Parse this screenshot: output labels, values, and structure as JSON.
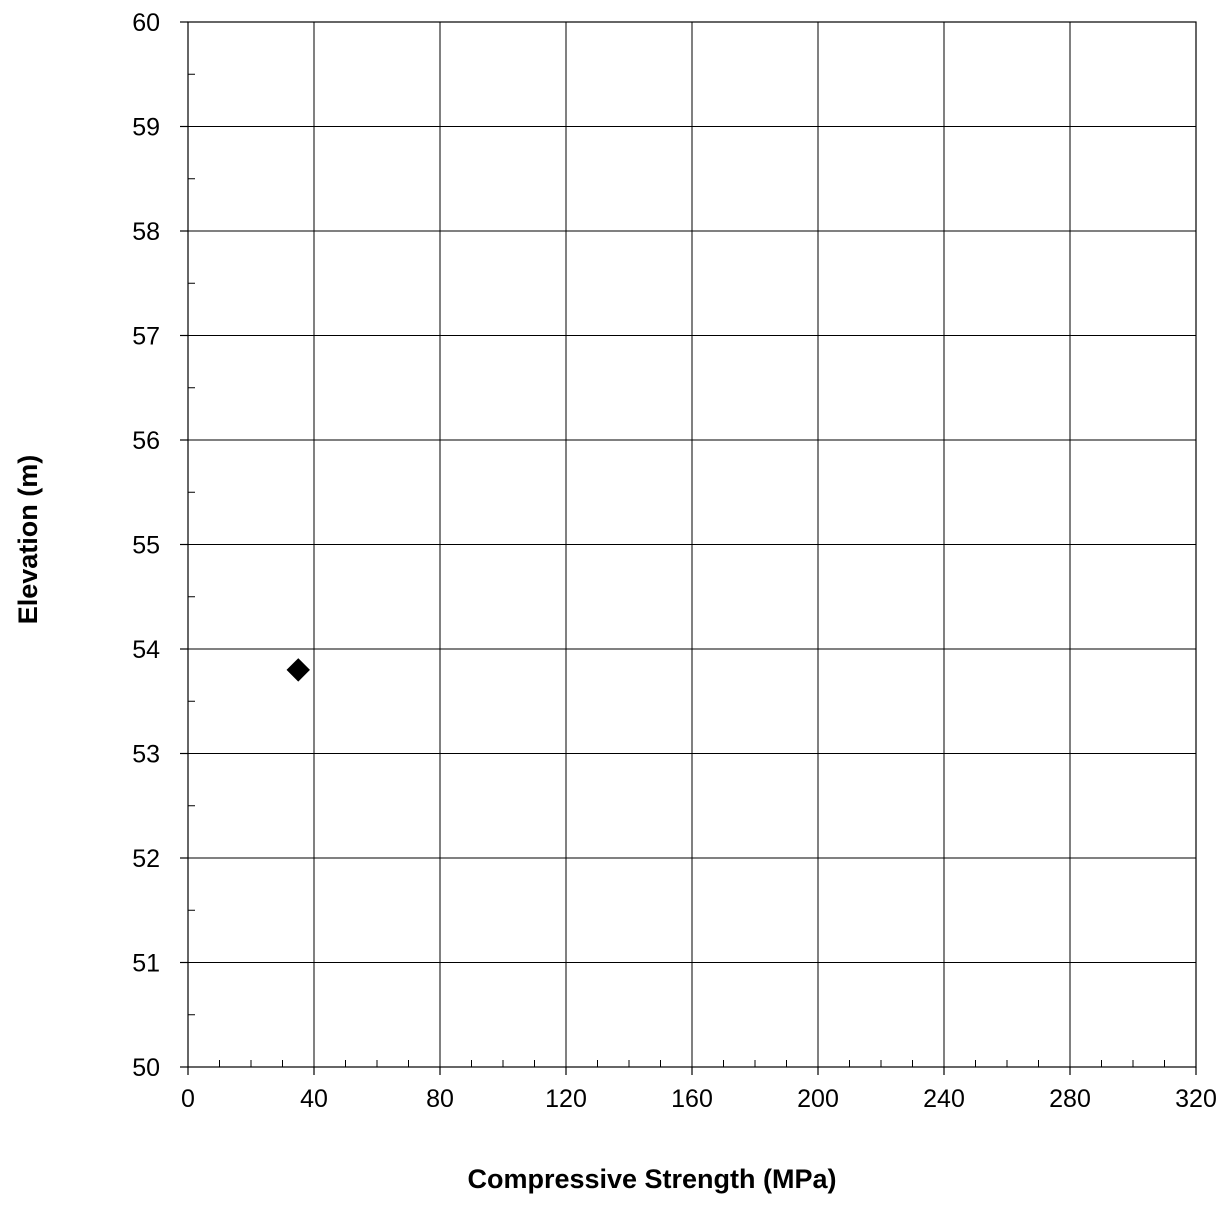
{
  "chart_data": {
    "type": "scatter",
    "xlabel": "Compressive Strength (MPa)",
    "ylabel": "Elevation (m)",
    "xlim": [
      0,
      320
    ],
    "ylim": [
      50,
      60
    ],
    "x_major_ticks": [
      0,
      40,
      80,
      120,
      160,
      200,
      240,
      280,
      320
    ],
    "x_minor_step": 10,
    "y_major_ticks": [
      50,
      51,
      52,
      53,
      54,
      55,
      56,
      57,
      58,
      59,
      60
    ],
    "y_minor_step": 0.5,
    "grid": true,
    "marker": "diamond",
    "marker_color": "#000000",
    "series": [
      {
        "points": [
          {
            "x": 35,
            "y": 53.8
          }
        ]
      }
    ]
  }
}
